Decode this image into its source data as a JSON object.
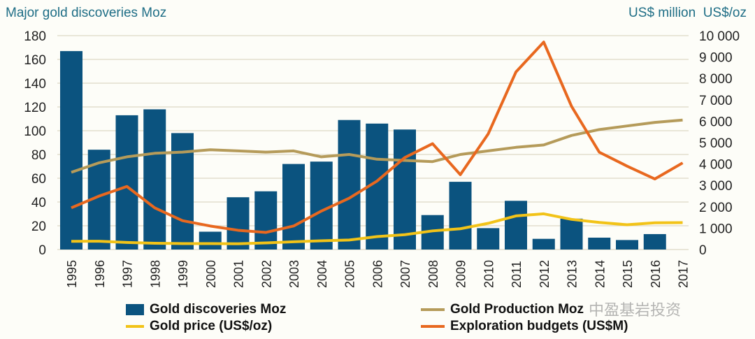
{
  "chart_data": {
    "type": "bar+line",
    "left_axis_title": "Major gold discoveries Moz",
    "right_axis_title": "US$ million  US$/oz",
    "left_ylim": [
      0,
      180
    ],
    "left_ticks": [
      0,
      20,
      40,
      60,
      80,
      100,
      120,
      140,
      160,
      180
    ],
    "right_ylim": [
      0,
      10000
    ],
    "right_ticks": [
      "0",
      "1 000",
      "2 000",
      "3 000",
      "4 000",
      "5 000",
      "6 000",
      "7 000",
      "8 000",
      "9 000",
      "10 000"
    ],
    "grid": true,
    "categories": [
      "1995",
      "1996",
      "1997",
      "1998",
      "1999",
      "2000",
      "2001",
      "2002",
      "2003",
      "2004",
      "2005",
      "2006",
      "2007",
      "2008",
      "2009",
      "2010",
      "2011",
      "2012",
      "2013",
      "2014",
      "2015",
      "2016",
      "2017"
    ],
    "series": [
      {
        "name": "Gold discoveries Moz",
        "type": "bar",
        "axis": "left",
        "color": "#0b537f",
        "values": [
          167,
          84,
          113,
          118,
          98,
          15,
          44,
          49,
          72,
          74,
          109,
          106,
          101,
          29,
          57,
          18,
          41,
          9,
          26,
          10,
          8,
          13,
          null
        ]
      },
      {
        "name": "Gold Production Moz",
        "type": "line",
        "axis": "left",
        "color": "#b59b5a",
        "values": [
          65,
          73,
          78,
          81,
          82,
          84,
          83,
          82,
          83,
          78,
          80,
          76,
          75,
          74,
          80,
          83,
          86,
          88,
          96,
          101,
          104,
          107,
          109
        ]
      },
      {
        "name": "Gold price (US$/oz)",
        "type": "line",
        "axis": "right",
        "color": "#f2c318",
        "values": [
          384,
          388,
          331,
          294,
          279,
          279,
          271,
          310,
          363,
          409,
          445,
          604,
          695,
          872,
          972,
          1225,
          1572,
          1669,
          1411,
          1266,
          1160,
          1251,
          1257
        ]
      },
      {
        "name": "Exploration budgets (US$M)",
        "type": "line",
        "axis": "right",
        "color": "#e8681f",
        "values": [
          1950,
          2500,
          2950,
          1950,
          1350,
          1100,
          900,
          800,
          1100,
          1800,
          2400,
          3200,
          4300,
          4950,
          3500,
          5400,
          8300,
          9700,
          6700,
          4550,
          3900,
          3300,
          4050
        ]
      }
    ],
    "legend_position": "bottom"
  },
  "watermark": "中盈基岩投资"
}
